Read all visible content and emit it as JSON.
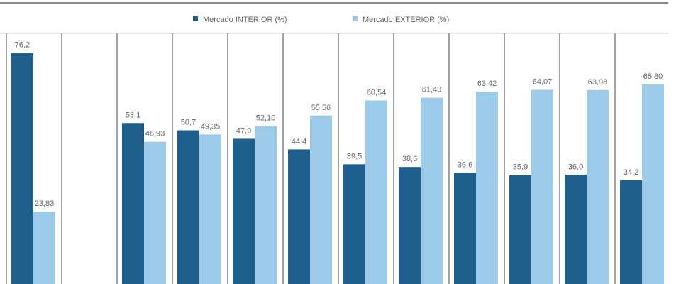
{
  "chart_data": {
    "type": "bar",
    "categories": [
      "",
      "",
      "",
      "",
      "",
      "",
      "",
      "",
      "",
      "",
      "",
      ""
    ],
    "series": [
      {
        "name": "Mercado INTERIOR (%)",
        "color": "#1f5f8e",
        "values": [
          76.2,
          null,
          53.1,
          50.7,
          47.9,
          44.4,
          39.5,
          38.6,
          36.6,
          35.9,
          36.0,
          34.2
        ],
        "labels": [
          "76,2",
          "",
          "53,1",
          "50,7",
          "47,9",
          "44,4",
          "39,5",
          "38,6",
          "36,6",
          "35,9",
          "36,0",
          "34,2"
        ]
      },
      {
        "name": "Mercado EXTERIOR (%)",
        "color": "#9ecae9",
        "values": [
          23.83,
          null,
          46.93,
          49.35,
          52.1,
          55.56,
          60.54,
          61.43,
          63.42,
          64.07,
          63.98,
          65.8
        ],
        "labels": [
          "23,83",
          "",
          "46,93",
          "49,35",
          "52,10",
          "55,56",
          "60,54",
          "61,43",
          "63,42",
          "64,07",
          "63,98",
          "65,80"
        ]
      }
    ],
    "legend_position": "top-center",
    "grid": false,
    "ylim": [
      0,
      80
    ]
  }
}
